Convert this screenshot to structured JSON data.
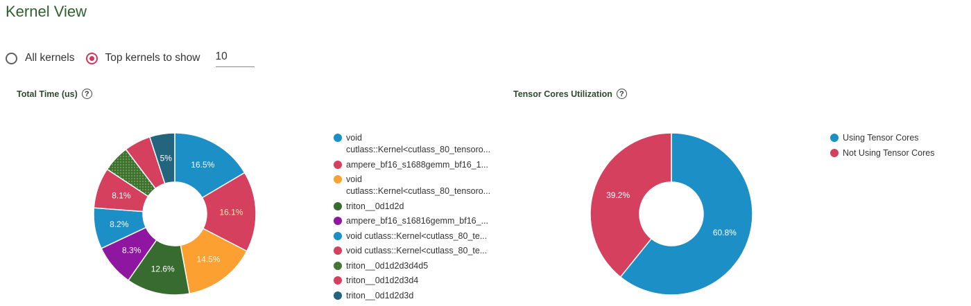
{
  "page": {
    "title": "Kernel View",
    "mode_options": [
      {
        "label": "All kernels",
        "selected": false
      },
      {
        "label": "Top kernels to show",
        "selected": true
      }
    ],
    "top_k_value": "10"
  },
  "colors": {
    "blue": "#1b8fc6",
    "red": "#d6405f",
    "orange": "#fba031",
    "darkgreen": "#376b30",
    "purple": "#8e16a0",
    "olive": "#3f7231",
    "teal": "#23657f"
  },
  "chart_data": [
    {
      "type": "pie",
      "donut": true,
      "title": "Total Time (us)",
      "legend_position": "right",
      "slices": [
        {
          "name": "void\ncutlass::Kernel<cutlass_80_tensoro...",
          "value": 16.5,
          "label": "16.5%",
          "color": "#1b8fc6"
        },
        {
          "name": "ampere_bf16_s1688gemm_bf16_1...",
          "value": 16.1,
          "label": "16.1%",
          "color": "#d6405f"
        },
        {
          "name": "void\ncutlass::Kernel<cutlass_80_tensoro...",
          "value": 14.5,
          "label": "14.5%",
          "color": "#fba031"
        },
        {
          "name": "triton__0d1d2d",
          "value": 12.6,
          "label": "12.6%",
          "color": "#376b30"
        },
        {
          "name": "ampere_bf16_s16816gemm_bf16_...",
          "value": 8.3,
          "label": "8.3%",
          "color": "#8e16a0"
        },
        {
          "name": "void cutlass::Kernel<cutlass_80_te...",
          "value": 8.2,
          "label": "8.2%",
          "color": "#1b8fc6"
        },
        {
          "name": "void cutlass::Kernel<cutlass_80_te...",
          "value": 8.1,
          "label": "8.1%",
          "color": "#d6405f"
        },
        {
          "name": "triton__0d1d2d3d4d5",
          "value": 5.4,
          "label": "",
          "color": "#3f7231",
          "pattern": true
        },
        {
          "name": "triton__0d1d2d3d4",
          "value": 5.3,
          "label": "",
          "color": "#d6405f"
        },
        {
          "name": "triton__0d1d2d3d",
          "value": 5.0,
          "label": "5%",
          "color": "#23657f"
        }
      ]
    },
    {
      "type": "pie",
      "donut": true,
      "title": "Tensor Cores Utilization",
      "legend_position": "right",
      "slices": [
        {
          "name": "Using Tensor Cores",
          "value": 60.8,
          "label": "60.8%",
          "color": "#1b8fc6"
        },
        {
          "name": "Not Using Tensor Cores",
          "value": 39.2,
          "label": "39.2%",
          "color": "#d6405f"
        }
      ]
    }
  ]
}
